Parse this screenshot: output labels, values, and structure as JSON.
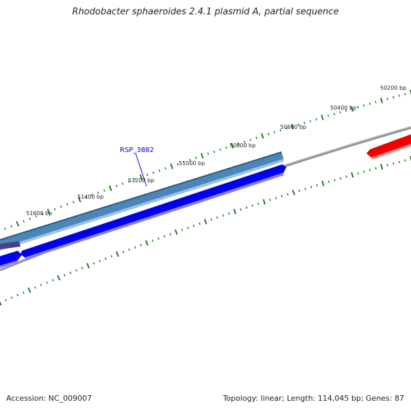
{
  "title": "Rhodobacter sphaeroides 2.4.1 plasmid A, partial sequence",
  "footer": {
    "accession": "Accession: NC_009007",
    "summary": "Topology: linear; Length: 114,045 bp; Genes: 87"
  },
  "scale_labels": [
    "50200 bp",
    "50400 bp",
    "50600 bp",
    "50800 bp",
    "51000 bp",
    "51200 bp",
    "51400 bp",
    "51600 bp"
  ],
  "gene_label": "RSP_3882",
  "colors": {
    "backbone": "#808080",
    "ticks": "#1f7a1f",
    "selected_gene": "#4a86b8",
    "forward_gene": "#0000ee",
    "reverse_gene": "#ee0000",
    "other_gene": "#4b3f8c"
  }
}
